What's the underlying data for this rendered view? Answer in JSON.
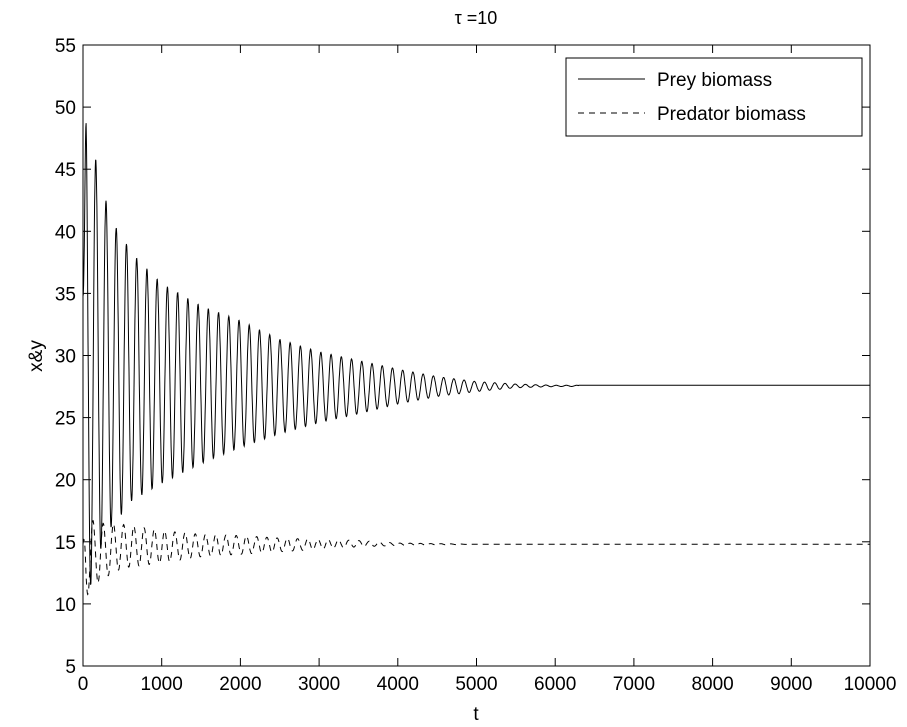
{
  "chart_data": {
    "type": "line",
    "title": "τ =10",
    "xlabel": "t",
    "ylabel": "x&y",
    "xlim": [
      0,
      10000
    ],
    "ylim": [
      5,
      55
    ],
    "xticks": [
      0,
      1000,
      2000,
      3000,
      4000,
      5000,
      6000,
      7000,
      8000,
      9000,
      10000
    ],
    "yticks": [
      5,
      10,
      15,
      20,
      25,
      30,
      35,
      40,
      45,
      50,
      55
    ],
    "grid": false,
    "legend_position": "top-right",
    "series": [
      {
        "name": "Prey biomass",
        "style": "solid",
        "color": "#000000",
        "oscillation": {
          "start_value": 35,
          "equilibrium": 27.6,
          "period": 130,
          "first_peak": 50.3,
          "first_trough": 11.5,
          "damped_by": 6300
        },
        "peaks": [
          [
            30,
            50.3
          ],
          [
            180,
            45.2
          ],
          [
            290,
            42.5
          ],
          [
            420,
            40.3
          ],
          [
            560,
            38.9
          ],
          [
            700,
            37.7
          ],
          [
            1000,
            35.8
          ],
          [
            1500,
            34.0
          ],
          [
            2000,
            32.8
          ],
          [
            2500,
            31.3
          ],
          [
            3000,
            30.3
          ],
          [
            3500,
            29.6
          ],
          [
            4000,
            28.9
          ],
          [
            4500,
            28.3
          ],
          [
            5000,
            27.9
          ],
          [
            5500,
            27.7
          ],
          [
            6000,
            27.6
          ],
          [
            10000,
            27.6
          ]
        ],
        "troughs": [
          [
            110,
            11.5
          ],
          [
            230,
            14.5
          ],
          [
            360,
            16.2
          ],
          [
            490,
            17.2
          ],
          [
            620,
            18.3
          ],
          [
            1000,
            19.7
          ],
          [
            1500,
            21.3
          ],
          [
            2000,
            22.6
          ],
          [
            2500,
            23.7
          ],
          [
            3000,
            24.6
          ],
          [
            3500,
            25.3
          ],
          [
            4000,
            26.1
          ],
          [
            4500,
            26.7
          ],
          [
            5000,
            27.1
          ],
          [
            5500,
            27.4
          ],
          [
            6000,
            27.5
          ],
          [
            10000,
            27.6
          ]
        ]
      },
      {
        "name": "Predator biomass",
        "style": "dashed",
        "color": "#000000",
        "oscillation": {
          "start_value": 14.8,
          "equilibrium": 14.8,
          "period": 130,
          "first_peak": 16.9,
          "first_trough": 10.5,
          "damped_by": 5000
        },
        "peaks": [
          [
            60,
            16.9
          ],
          [
            200,
            16.5
          ],
          [
            500,
            16.4
          ],
          [
            1000,
            15.9
          ],
          [
            1500,
            15.6
          ],
          [
            2000,
            15.5
          ],
          [
            2500,
            15.3
          ],
          [
            3000,
            15.2
          ],
          [
            3500,
            15.1
          ],
          [
            4000,
            14.9
          ],
          [
            5000,
            14.8
          ],
          [
            10000,
            14.8
          ]
        ],
        "troughs": [
          [
            30,
            10.5
          ],
          [
            150,
            11.5
          ],
          [
            300,
            12.2
          ],
          [
            500,
            12.9
          ],
          [
            1000,
            13.3
          ],
          [
            1500,
            13.8
          ],
          [
            2000,
            14.0
          ],
          [
            2500,
            14.2
          ],
          [
            3000,
            14.4
          ],
          [
            3500,
            14.6
          ],
          [
            4000,
            14.7
          ],
          [
            5000,
            14.8
          ],
          [
            10000,
            14.8
          ]
        ]
      }
    ]
  }
}
